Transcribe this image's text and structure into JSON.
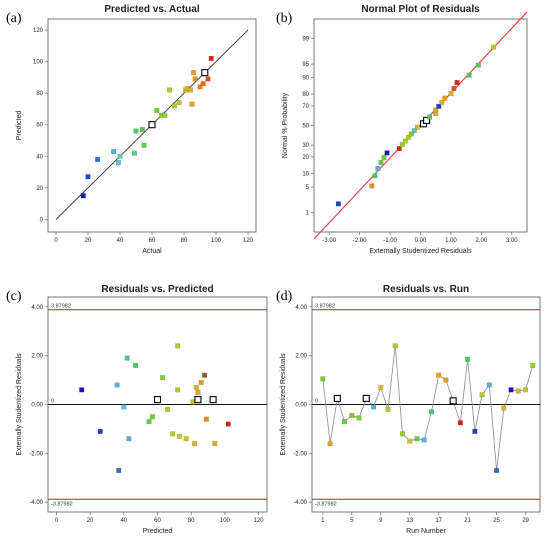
{
  "chart_data": [
    {
      "panel_label": "(a)",
      "type": "scatter",
      "title": "Predicted vs. Actual",
      "xlabel": "Actual",
      "ylabel": "Predicted",
      "xlim": [
        -5,
        125
      ],
      "ylim": [
        -8,
        127
      ],
      "xticks": [
        "0",
        "20",
        "40",
        "60",
        "80",
        "100",
        "120"
      ],
      "yticks": [
        "0",
        "20",
        "40",
        "60",
        "80",
        "100",
        "120"
      ],
      "reference_line": {
        "x": [
          0,
          120
        ],
        "y": [
          0,
          120
        ]
      },
      "points": [
        {
          "x": 17,
          "y": 15,
          "color": "#1515c8"
        },
        {
          "x": 20,
          "y": 27,
          "color": "#1d3fd0"
        },
        {
          "x": 26,
          "y": 38,
          "color": "#2d6ed0"
        },
        {
          "x": 36,
          "y": 43,
          "color": "#55b0dc"
        },
        {
          "x": 39,
          "y": 36,
          "color": "#5fc0d6"
        },
        {
          "x": 40,
          "y": 40,
          "color": "#5fc8b6"
        },
        {
          "x": 49,
          "y": 42,
          "color": "#52cf86"
        },
        {
          "x": 50,
          "y": 56,
          "color": "#4acb6a"
        },
        {
          "x": 54,
          "y": 57,
          "color": "#52c85a"
        },
        {
          "x": 55,
          "y": 47,
          "color": "#5ed04c"
        },
        {
          "x": 60,
          "y": 60,
          "color": "#ffffff",
          "hollow": true
        },
        {
          "x": 63,
          "y": 69,
          "color": "#74cc38"
        },
        {
          "x": 66,
          "y": 66,
          "color": "#86d030"
        },
        {
          "x": 68,
          "y": 66,
          "color": "#9ad02c"
        },
        {
          "x": 71,
          "y": 82,
          "color": "#a6d02a"
        },
        {
          "x": 74,
          "y": 72,
          "color": "#b0cc28"
        },
        {
          "x": 77,
          "y": 74,
          "color": "#bec828"
        },
        {
          "x": 81,
          "y": 82,
          "color": "#ccc228"
        },
        {
          "x": 82,
          "y": 83,
          "color": "#d4b826"
        },
        {
          "x": 84,
          "y": 82,
          "color": "#dcae24"
        },
        {
          "x": 85,
          "y": 73,
          "color": "#e0a420"
        },
        {
          "x": 86,
          "y": 93,
          "color": "#e89a1e"
        },
        {
          "x": 87,
          "y": 89,
          "color": "#ec8c1c"
        },
        {
          "x": 90,
          "y": 84,
          "color": "#ee7a1a"
        },
        {
          "x": 92,
          "y": 86,
          "color": "#f06418"
        },
        {
          "x": 93,
          "y": 93,
          "color": "#ffffff",
          "hollow": true
        },
        {
          "x": 95,
          "y": 89,
          "color": "#e84a16"
        },
        {
          "x": 97,
          "y": 102,
          "color": "#d42414"
        }
      ]
    },
    {
      "panel_label": "(b)",
      "type": "scatter",
      "title": "Normal Plot of Residuals",
      "xlabel": "Externally Studentized Residuals",
      "ylabel": "Normal % Probability",
      "xlim": [
        -3.5,
        3.5
      ],
      "xticks": [
        "-3.00",
        "-2.00",
        "-1.00",
        "0.00",
        "1.00",
        "2.00",
        "3.00"
      ],
      "yticks": [
        "1",
        "5",
        "10",
        "20",
        "30",
        "50",
        "70",
        "80",
        "90",
        "95",
        "99"
      ],
      "reference_line": {
        "x": [
          -3.5,
          3.5
        ],
        "y": [
          0.12,
          99.88
        ]
      },
      "points": [
        {
          "x": -2.7,
          "y": 1.8,
          "color": "#1d3fd0"
        },
        {
          "x": -1.6,
          "y": 5.3,
          "color": "#ec8c1c"
        },
        {
          "x": -1.5,
          "y": 8.9,
          "color": "#4acb6a"
        },
        {
          "x": -1.4,
          "y": 12.5,
          "color": "#55b0dc"
        },
        {
          "x": -1.3,
          "y": 16.1,
          "color": "#5ed04c"
        },
        {
          "x": -1.2,
          "y": 19.6,
          "color": "#74cc38"
        },
        {
          "x": -1.1,
          "y": 23.2,
          "color": "#1515c8"
        },
        {
          "x": -0.7,
          "y": 26.8,
          "color": "#d42414"
        },
        {
          "x": -0.6,
          "y": 30.4,
          "color": "#9ad02c"
        },
        {
          "x": -0.5,
          "y": 33.9,
          "color": "#a6d02a"
        },
        {
          "x": -0.4,
          "y": 37.5,
          "color": "#b0cc28"
        },
        {
          "x": -0.3,
          "y": 41.1,
          "color": "#86d030"
        },
        {
          "x": -0.2,
          "y": 44.6,
          "color": "#5fc0d6"
        },
        {
          "x": -0.1,
          "y": 48.2,
          "color": "#ccc228"
        },
        {
          "x": 0.1,
          "y": 51.8,
          "color": "#ffffff",
          "hollow": true
        },
        {
          "x": 0.2,
          "y": 55.4,
          "color": "#ffffff",
          "hollow": true
        },
        {
          "x": 0.3,
          "y": 58.9,
          "color": "#52c85a"
        },
        {
          "x": 0.5,
          "y": 62.5,
          "color": "#d4b826"
        },
        {
          "x": 0.5,
          "y": 66.1,
          "color": "#e0a420"
        },
        {
          "x": 0.6,
          "y": 69.6,
          "color": "#1d3fd0"
        },
        {
          "x": 0.7,
          "y": 73.2,
          "color": "#dcae24"
        },
        {
          "x": 0.8,
          "y": 76.8,
          "color": "#e89a1e"
        },
        {
          "x": 1.0,
          "y": 80.4,
          "color": "#d4b826"
        },
        {
          "x": 1.1,
          "y": 83.9,
          "color": "#e84a16"
        },
        {
          "x": 1.2,
          "y": 87.5,
          "color": "#d42414"
        },
        {
          "x": 1.6,
          "y": 91.1,
          "color": "#4acb6a"
        },
        {
          "x": 1.9,
          "y": 94.7,
          "color": "#5ed04c"
        },
        {
          "x": 2.4,
          "y": 98.2,
          "color": "#bec828"
        }
      ]
    },
    {
      "panel_label": "(c)",
      "type": "scatter",
      "title": "Residuals vs. Predicted",
      "xlabel": "Predicted",
      "ylabel": "Externally Studentized Residuals",
      "xlim": [
        -5,
        125
      ],
      "ylim": [
        -4.4,
        4.4
      ],
      "xticks": [
        "0",
        "20",
        "40",
        "60",
        "80",
        "100",
        "120"
      ],
      "yticks": [
        "-4.00",
        "-2.00",
        "0.00",
        "2.00",
        "4.00"
      ],
      "limit_lines": [
        {
          "y": 3.87982,
          "label": "3.87982"
        },
        {
          "y": -3.87982,
          "label": "-3.87982"
        }
      ],
      "zero_label": "0",
      "points": [
        {
          "x": 15,
          "y": 0.6,
          "color": "#1515c8"
        },
        {
          "x": 26,
          "y": -1.1,
          "color": "#1d3fd0"
        },
        {
          "x": 36,
          "y": 0.8,
          "color": "#55b0dc"
        },
        {
          "x": 37,
          "y": -2.7,
          "color": "#2d6ed0"
        },
        {
          "x": 40,
          "y": -0.1,
          "color": "#5fc0d6"
        },
        {
          "x": 42,
          "y": 1.9,
          "color": "#4acb6a"
        },
        {
          "x": 43,
          "y": -1.4,
          "color": "#55b0dc"
        },
        {
          "x": 47,
          "y": 1.6,
          "color": "#52c85a"
        },
        {
          "x": 55,
          "y": -0.7,
          "color": "#5ed04c"
        },
        {
          "x": 57,
          "y": -0.5,
          "color": "#74cc38"
        },
        {
          "x": 60,
          "y": 0.2,
          "color": "#ffffff",
          "hollow": true
        },
        {
          "x": 63,
          "y": 1.1,
          "color": "#86d030"
        },
        {
          "x": 66,
          "y": -0.2,
          "color": "#9ad02c"
        },
        {
          "x": 69,
          "y": -1.2,
          "color": "#a6d02a"
        },
        {
          "x": 72,
          "y": 0.6,
          "color": "#b0cc28"
        },
        {
          "x": 72,
          "y": 2.4,
          "color": "#a6d02a"
        },
        {
          "x": 73,
          "y": -1.3,
          "color": "#bec828"
        },
        {
          "x": 77,
          "y": -1.4,
          "color": "#ccc228"
        },
        {
          "x": 81,
          "y": 0.1,
          "color": "#ccc228"
        },
        {
          "x": 82,
          "y": -1.6,
          "color": "#d4b826"
        },
        {
          "x": 83,
          "y": 0.7,
          "color": "#dcae24"
        },
        {
          "x": 84,
          "y": 0.5,
          "color": "#e0a420"
        },
        {
          "x": 84,
          "y": 0.2,
          "color": "#ffffff",
          "hollow": true
        },
        {
          "x": 86,
          "y": 0.9,
          "color": "#e89a1e"
        },
        {
          "x": 88,
          "y": 1.2,
          "color": "#8a5a2a"
        },
        {
          "x": 89,
          "y": -0.6,
          "color": "#ec8c1c"
        },
        {
          "x": 93,
          "y": 0.2,
          "color": "#ffffff",
          "hollow": true
        },
        {
          "x": 94,
          "y": -1.6,
          "color": "#e0a420"
        },
        {
          "x": 102,
          "y": -0.8,
          "color": "#d42414"
        }
      ]
    },
    {
      "panel_label": "(d)",
      "type": "line",
      "title": "Residuals vs. Run",
      "xlabel": "Run Number",
      "ylabel": "Externally Studentized Residuals",
      "xlim": [
        -0.5,
        31
      ],
      "ylim": [
        -4.4,
        4.4
      ],
      "xticks": [
        "1",
        "5",
        "9",
        "13",
        "17",
        "21",
        "25",
        "29"
      ],
      "yticks": [
        "-4.00",
        "-2.00",
        "0.00",
        "2.00",
        "4.00"
      ],
      "limit_lines": [
        {
          "y": 3.87982,
          "label": "3.87982"
        },
        {
          "y": -3.87982,
          "label": "-3.87982"
        }
      ],
      "zero_label": "0",
      "points": [
        {
          "x": 1,
          "y": 1.05,
          "color": "#74cc38"
        },
        {
          "x": 2,
          "y": -1.6,
          "color": "#e0a420"
        },
        {
          "x": 3,
          "y": 0.25,
          "color": "#ffffff",
          "hollow": true
        },
        {
          "x": 4,
          "y": -0.7,
          "color": "#5ed04c"
        },
        {
          "x": 5,
          "y": -0.45,
          "color": "#74cc38"
        },
        {
          "x": 6,
          "y": -0.55,
          "color": "#86d030"
        },
        {
          "x": 7,
          "y": 0.25,
          "color": "#ffffff",
          "hollow": true
        },
        {
          "x": 8,
          "y": -0.1,
          "color": "#55b0dc"
        },
        {
          "x": 9,
          "y": 0.7,
          "color": "#ccc228"
        },
        {
          "x": 10,
          "y": -0.2,
          "color": "#bec828"
        },
        {
          "x": 11,
          "y": 2.4,
          "color": "#a6d02a"
        },
        {
          "x": 12,
          "y": -1.2,
          "color": "#9ad02c"
        },
        {
          "x": 13,
          "y": -1.5,
          "color": "#ccc228"
        },
        {
          "x": 14,
          "y": -1.4,
          "color": "#5ed04c"
        },
        {
          "x": 15,
          "y": -1.45,
          "color": "#55b0dc"
        },
        {
          "x": 16,
          "y": -0.3,
          "color": "#4acb6a"
        },
        {
          "x": 17,
          "y": 1.2,
          "color": "#e0a420"
        },
        {
          "x": 18,
          "y": 1.0,
          "color": "#e89a1e"
        },
        {
          "x": 19,
          "y": 0.15,
          "color": "#ffffff",
          "hollow": true
        },
        {
          "x": 20,
          "y": -0.75,
          "color": "#d42414"
        },
        {
          "x": 21,
          "y": 1.85,
          "color": "#4acb6a"
        },
        {
          "x": 22,
          "y": -1.1,
          "color": "#1d3fd0"
        },
        {
          "x": 23,
          "y": 0.4,
          "color": "#b0cc28"
        },
        {
          "x": 24,
          "y": 0.8,
          "color": "#55b0dc"
        },
        {
          "x": 25,
          "y": -2.7,
          "color": "#2d6ed0"
        },
        {
          "x": 26,
          "y": -0.15,
          "color": "#ccc228"
        },
        {
          "x": 27,
          "y": 0.6,
          "color": "#1515c8"
        },
        {
          "x": 28,
          "y": 0.55,
          "color": "#dcae24"
        },
        {
          "x": 29,
          "y": 0.6,
          "color": "#d4b826"
        },
        {
          "x": 30,
          "y": 1.6,
          "color": "#86d030"
        }
      ]
    }
  ],
  "colors": {
    "reference_line": "#ee3a3a",
    "limit_line": "#c41e1e",
    "identity_line": "#333333",
    "frame": "#555555"
  }
}
